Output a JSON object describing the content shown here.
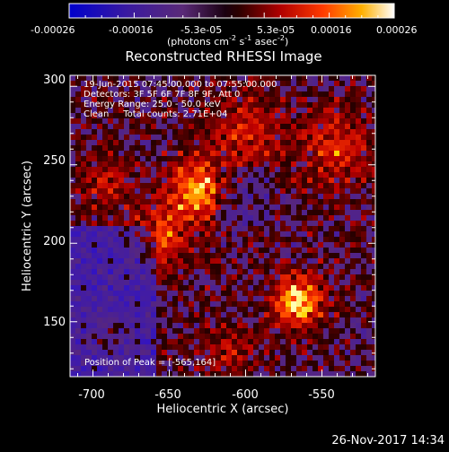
{
  "colorbar": {
    "tick_labels": [
      "-0.00026",
      "-0.00016",
      "-5.3e-05",
      "5.3e-05",
      "0.00016",
      "0.00026"
    ],
    "units_label": "(photons cm",
    "units_exp1": "-2",
    "units_mid": " s",
    "units_exp2": "-1",
    "units_tail": " asec",
    "units_exp3": "-2",
    "units_close": ")",
    "min": -0.00026,
    "max": 0.00026
  },
  "plot": {
    "title": "Reconstructed RHESSI Image",
    "info_lines": [
      "19-Jun-2015 07:45:00.000 to 07:55:00.000",
      "Detectors: 3F 5F 6F 7F 8F 9F, Att 0",
      "Energy Range: 25.0 - 50.0 keV",
      "Clean     Total counts: 2.71E+04"
    ],
    "peak_label": "Position of Peak = [-565,164]",
    "xlabel": "Heliocentric X (arcsec)",
    "ylabel": "Heliocentric Y (arcsec)",
    "xticks": [
      "-700",
      "-650",
      "-600",
      "-550"
    ],
    "yticks": [
      "300",
      "250",
      "200",
      "150"
    ],
    "xlim": [
      -715,
      -515
    ],
    "ylim": [
      115,
      307
    ]
  },
  "footer": {
    "timestamp": "26-Nov-2017 14:34"
  },
  "colors": {
    "background": "#000000",
    "text": "#ffffff"
  }
}
